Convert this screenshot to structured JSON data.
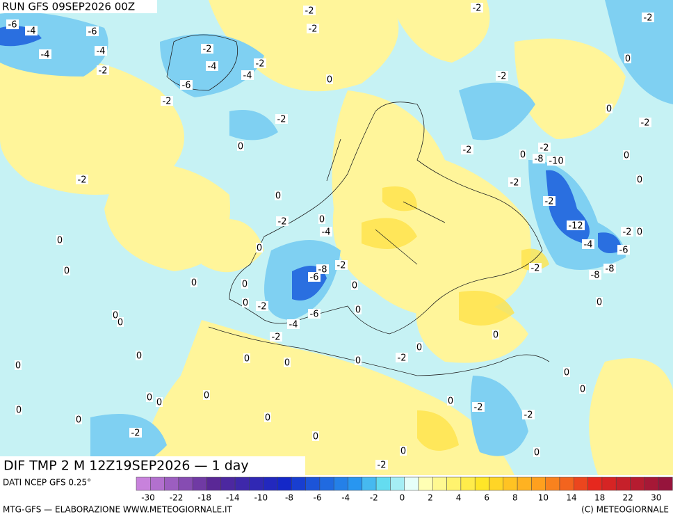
{
  "header": {
    "run": "RUN GFS 09SEP2026 00Z",
    "field": "DIF TMP 2 M 12Z19SEP2026 — 1 day"
  },
  "contour_labels": [
    "-6",
    "-4",
    "-6",
    "-4",
    "-4",
    "-2",
    "-2",
    "-4",
    "-6",
    "-2",
    "-4",
    "-2",
    "-2",
    "-2",
    "-2",
    "-2",
    "0",
    "-2",
    "0",
    "0",
    "-2",
    "0",
    "-2",
    "-2",
    "0",
    "0",
    "-2",
    "-2",
    "-8",
    "-10",
    "-2",
    "0",
    "-2",
    "0",
    "-2",
    "0",
    "-4",
    "-12",
    "-2",
    "0",
    "-4",
    "-6",
    "0",
    "0",
    "0",
    "-8",
    "-6",
    "-2",
    "-2",
    "-8",
    "-8",
    "0",
    "0",
    "0",
    "0",
    "-2",
    "-6",
    "-4",
    "0",
    "0",
    "0",
    "0",
    "-2",
    "0",
    "0",
    "-2",
    "0",
    "0",
    "0",
    "0",
    "0",
    "0",
    "0",
    "0",
    "0",
    "0",
    "0",
    "-2",
    "-2",
    "0",
    "0",
    "0",
    "-2",
    "0",
    "0",
    "-2",
    "0"
  ],
  "legend": {
    "source": "DATI NCEP GFS 0.25°",
    "labels": [
      "-30",
      "-22",
      "-18",
      "-14",
      "-10",
      "-8",
      "-6",
      "-4",
      "-2",
      "0",
      "2",
      "4",
      "6",
      "8",
      "10",
      "14",
      "18",
      "22",
      "30"
    ]
  },
  "footer": {
    "left": "MTG-GFS — ELABORAZIONE WWW.METEOGIORNALE.IT",
    "right": "(C) METEOGIORNALE"
  }
}
